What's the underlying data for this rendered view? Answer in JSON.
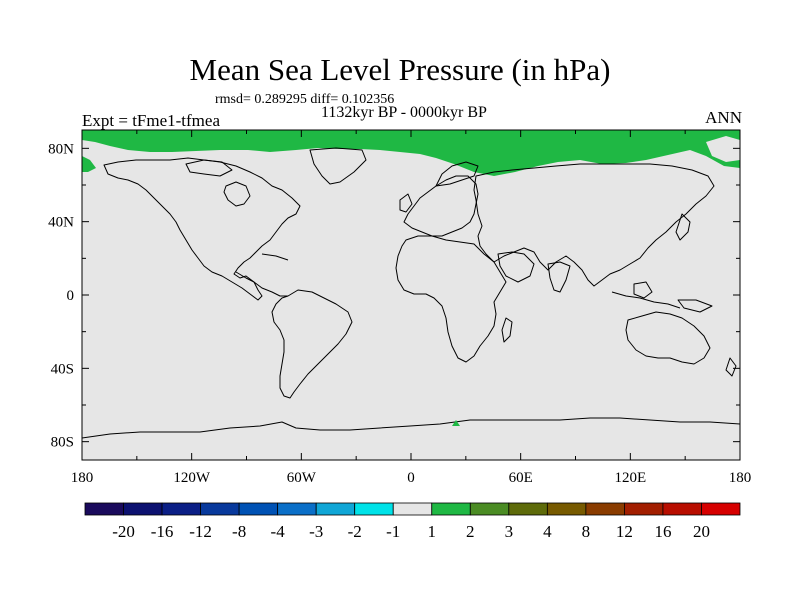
{
  "chart_data": {
    "type": "heatmap",
    "title": "Mean Sea Level Pressure (in hPa)",
    "stats_line": "rmsd= 0.289295 diff= 0.102356",
    "period": "1132kyr BP - 0000kyr BP",
    "experiment": "Expt = tFme1-tfmea",
    "season": "ANN",
    "projection": "cylindrical-equidistant",
    "x_axis": {
      "range": [
        -180,
        180
      ],
      "ticks": [
        -180,
        -120,
        -60,
        0,
        60,
        120,
        180
      ],
      "tick_labels": [
        "180",
        "120W",
        "60W",
        "0",
        "60E",
        "120E",
        "180"
      ]
    },
    "y_axis": {
      "range": [
        -90,
        90
      ],
      "ticks": [
        80,
        40,
        0,
        -40,
        -80
      ],
      "tick_labels": [
        "80N",
        "40N",
        "0",
        "40S",
        "80S"
      ]
    },
    "field_summary": {
      "background_class": "-1 to 1",
      "positive_regions": [
        {
          "name": "Arctic",
          "class": "1 to 2",
          "lat_min": 76,
          "lat_max": 90,
          "lon_min": -180,
          "lon_max": 180
        },
        {
          "name": "Antarctic spot",
          "class": "1 to 2",
          "lat": -70,
          "lon": 23
        }
      ]
    },
    "colorbar": {
      "labels": [
        "-20",
        "-16",
        "-12",
        "-8",
        "-4",
        "-3",
        "-2",
        "-1",
        "1",
        "2",
        "3",
        "4",
        "8",
        "12",
        "16",
        "20"
      ],
      "colors": [
        "#1a0a5c",
        "#0c1170",
        "#0b1f86",
        "#08399c",
        "#0052b4",
        "#0a6fc8",
        "#10a6d6",
        "#00e2e8",
        "#e6e6e6",
        "#1fb844",
        "#4b8c24",
        "#5e6b0a",
        "#775a00",
        "#8a3c00",
        "#a21e00",
        "#b80e00",
        "#d60000"
      ]
    },
    "colors": {
      "background": "#e6e6e6",
      "coastline": "#000000",
      "positive": "#1fb844"
    }
  }
}
